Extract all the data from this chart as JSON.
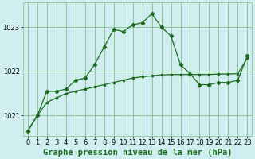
{
  "title": "Graphe pression niveau de la mer (hPa)",
  "background_color": "#d0eef0",
  "plot_bg_color": "#d0eef0",
  "grid_color": "#88bb88",
  "line_color": "#1a6b1a",
  "xlim": [
    -0.5,
    23.5
  ],
  "ylim": [
    1020.55,
    1023.55
  ],
  "yticks": [
    1021,
    1022,
    1023
  ],
  "xticks": [
    0,
    1,
    2,
    3,
    4,
    5,
    6,
    7,
    8,
    9,
    10,
    11,
    12,
    13,
    14,
    15,
    16,
    17,
    18,
    19,
    20,
    21,
    22,
    23
  ],
  "jagged_x": [
    0,
    1,
    2,
    3,
    4,
    5,
    6,
    7,
    8,
    9,
    10,
    11,
    12,
    13,
    14,
    15,
    16,
    17,
    18,
    19,
    20,
    21,
    22,
    23
  ],
  "jagged_y": [
    1020.65,
    1021.0,
    1021.55,
    1021.55,
    1021.6,
    1021.8,
    1021.85,
    1022.15,
    1022.55,
    1022.95,
    1022.9,
    1023.05,
    1023.1,
    1023.3,
    1023.0,
    1022.8,
    1022.15,
    1021.95,
    1021.7,
    1021.7,
    1021.75,
    1021.75,
    1021.8,
    1022.35
  ],
  "smooth_x": [
    0,
    1,
    2,
    3,
    4,
    5,
    6,
    7,
    8,
    9,
    10,
    11,
    12,
    13,
    14,
    15,
    16,
    17,
    18,
    19,
    20,
    21,
    22,
    23
  ],
  "smooth_y": [
    1020.65,
    1021.0,
    1021.3,
    1021.4,
    1021.5,
    1021.55,
    1021.6,
    1021.65,
    1021.7,
    1021.75,
    1021.8,
    1021.85,
    1021.88,
    1021.9,
    1021.92,
    1021.93,
    1021.93,
    1021.93,
    1021.93,
    1021.93,
    1021.94,
    1021.94,
    1021.95,
    1022.3
  ],
  "title_fontsize": 7.5,
  "tick_fontsize": 6
}
